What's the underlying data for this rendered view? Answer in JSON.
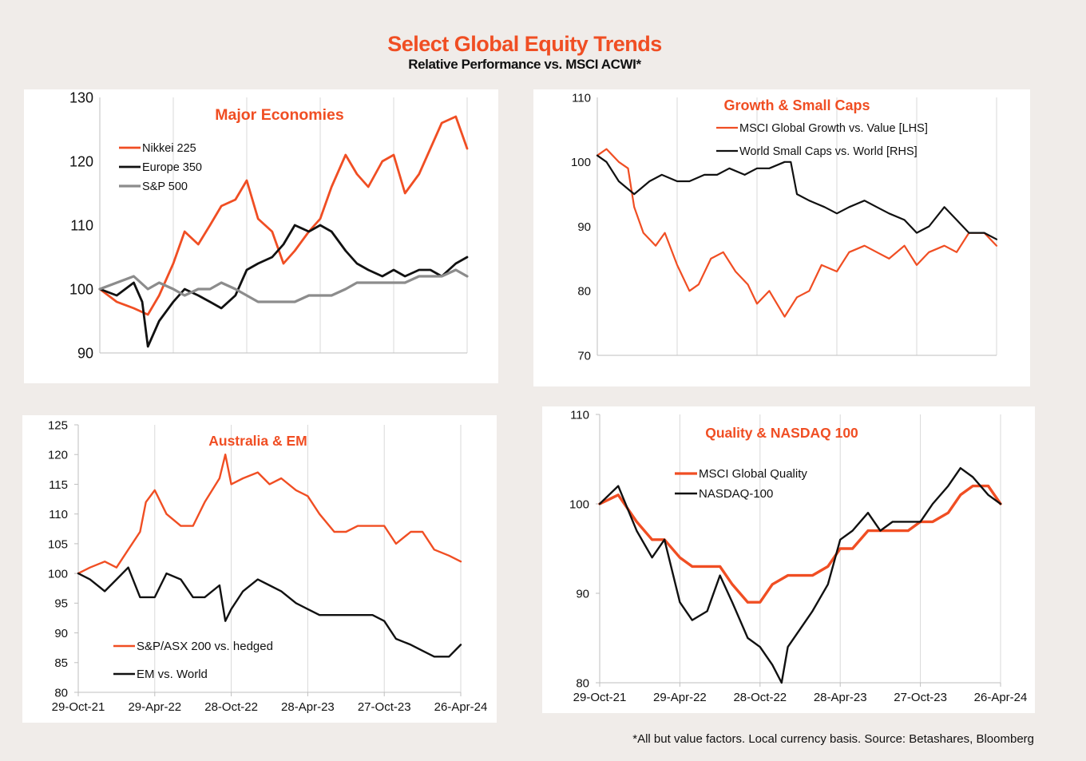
{
  "title": "Select Global Equity Trends",
  "subtitle": "Relative Performance vs. MSCI ACWI*",
  "footnote": "*All but value factors. Local currency basis.  Source: Betashares, Bloomberg",
  "colors": {
    "accent": "#f04e23",
    "dark": "#111111",
    "gray": "#8c8c8c"
  },
  "chart_data": [
    {
      "id": "major-economies",
      "type": "line",
      "title": "Major  Economies",
      "x_range": [
        "2021-10-29",
        "2024-04-26"
      ],
      "ylim": [
        90,
        130
      ],
      "yticks": [
        90,
        100,
        110,
        120,
        130
      ],
      "xticks": [],
      "grid": "vertical",
      "legend_placement": "upper-left",
      "series": [
        {
          "name": "Nikkei 225",
          "color": "#f04e23",
          "width": 2.8,
          "x": [
            "2021-10-29",
            "2021-12-10",
            "2022-01-21",
            "2022-02-25",
            "2022-03-25",
            "2022-04-29",
            "2022-05-27",
            "2022-06-30",
            "2022-07-29",
            "2022-08-26",
            "2022-09-30",
            "2022-10-28",
            "2022-11-25",
            "2022-12-30",
            "2023-01-27",
            "2023-02-24",
            "2023-03-31",
            "2023-04-28",
            "2023-05-26",
            "2023-06-30",
            "2023-07-28",
            "2023-08-25",
            "2023-09-29",
            "2023-10-27",
            "2023-11-24",
            "2023-12-29",
            "2024-01-26",
            "2024-02-23",
            "2024-03-29",
            "2024-04-26"
          ],
          "y": [
            100,
            98,
            97,
            96,
            99,
            104,
            109,
            107,
            110,
            113,
            114,
            117,
            111,
            109,
            104,
            106,
            109,
            111,
            116,
            121,
            118,
            116,
            120,
            121,
            115,
            118,
            122,
            126,
            127,
            122
          ]
        },
        {
          "name": "Europe 350",
          "color": "#111111",
          "width": 2.8,
          "x": [
            "2021-10-29",
            "2021-12-10",
            "2022-01-21",
            "2022-02-11",
            "2022-02-25",
            "2022-03-25",
            "2022-04-29",
            "2022-05-27",
            "2022-06-30",
            "2022-07-29",
            "2022-08-26",
            "2022-09-30",
            "2022-10-28",
            "2022-11-25",
            "2022-12-30",
            "2023-01-27",
            "2023-02-24",
            "2023-03-31",
            "2023-04-28",
            "2023-05-26",
            "2023-06-30",
            "2023-07-28",
            "2023-08-25",
            "2023-09-29",
            "2023-10-27",
            "2023-11-24",
            "2023-12-29",
            "2024-01-26",
            "2024-02-23",
            "2024-03-29",
            "2024-04-26"
          ],
          "y": [
            100,
            99,
            101,
            98,
            91,
            95,
            98,
            100,
            99,
            98,
            97,
            99,
            103,
            104,
            105,
            107,
            110,
            109,
            110,
            109,
            106,
            104,
            103,
            102,
            103,
            102,
            103,
            103,
            102,
            104,
            105
          ]
        },
        {
          "name": "S&P 500",
          "color": "#8c8c8c",
          "width": 3.2,
          "x": [
            "2021-10-29",
            "2021-12-10",
            "2022-01-21",
            "2022-02-25",
            "2022-03-25",
            "2022-04-29",
            "2022-05-27",
            "2022-06-30",
            "2022-07-29",
            "2022-08-26",
            "2022-09-30",
            "2022-10-28",
            "2022-11-25",
            "2022-12-30",
            "2023-01-27",
            "2023-02-24",
            "2023-03-31",
            "2023-04-28",
            "2023-05-26",
            "2023-06-30",
            "2023-07-28",
            "2023-08-25",
            "2023-09-29",
            "2023-10-27",
            "2023-11-24",
            "2023-12-29",
            "2024-01-26",
            "2024-02-23",
            "2024-03-29",
            "2024-04-26"
          ],
          "y": [
            100,
            101,
            102,
            100,
            101,
            100,
            99,
            100,
            100,
            101,
            100,
            99,
            98,
            98,
            98,
            98,
            99,
            99,
            99,
            100,
            101,
            101,
            101,
            101,
            101,
            102,
            102,
            102,
            103,
            102
          ]
        }
      ]
    },
    {
      "id": "growth-small-caps",
      "type": "line",
      "title": "Growth & Small Caps",
      "x_range": [
        "2021-10-29",
        "2024-04-26"
      ],
      "ylim": [
        70,
        110
      ],
      "yticks": [
        70,
        80,
        90,
        100,
        110
      ],
      "xticks": [],
      "grid": "vertical",
      "legend_placement": "top-center",
      "series": [
        {
          "name": "MSCI Global Growth vs. Value [LHS]",
          "color": "#f04e23",
          "width": 2.2,
          "x": [
            "2021-10-29",
            "2021-11-19",
            "2021-12-17",
            "2022-01-07",
            "2022-01-21",
            "2022-02-11",
            "2022-03-11",
            "2022-04-01",
            "2022-04-29",
            "2022-05-27",
            "2022-06-17",
            "2022-07-15",
            "2022-08-12",
            "2022-09-09",
            "2022-10-07",
            "2022-10-28",
            "2022-11-25",
            "2022-12-30",
            "2023-01-27",
            "2023-02-24",
            "2023-03-24",
            "2023-04-28",
            "2023-05-26",
            "2023-06-30",
            "2023-07-28",
            "2023-08-25",
            "2023-09-29",
            "2023-10-27",
            "2023-11-24",
            "2023-12-29",
            "2024-01-26",
            "2024-02-23",
            "2024-03-29",
            "2024-04-26"
          ],
          "y": [
            101,
            102,
            100,
            99,
            93,
            89,
            87,
            89,
            84,
            80,
            81,
            85,
            86,
            83,
            81,
            78,
            80,
            76,
            79,
            80,
            84,
            83,
            86,
            87,
            86,
            85,
            87,
            84,
            86,
            87,
            86,
            89,
            89,
            87
          ]
        },
        {
          "name": "World Small Caps vs. World [RHS]",
          "color": "#111111",
          "width": 2.2,
          "x": [
            "2021-10-29",
            "2021-11-19",
            "2021-12-17",
            "2022-01-21",
            "2022-02-25",
            "2022-03-25",
            "2022-04-29",
            "2022-05-27",
            "2022-06-30",
            "2022-07-29",
            "2022-08-26",
            "2022-09-30",
            "2022-10-28",
            "2022-11-25",
            "2022-12-30",
            "2023-01-13",
            "2023-01-27",
            "2023-02-24",
            "2023-03-31",
            "2023-04-28",
            "2023-05-26",
            "2023-06-30",
            "2023-07-28",
            "2023-08-25",
            "2023-09-29",
            "2023-10-27",
            "2023-11-24",
            "2023-12-29",
            "2024-01-26",
            "2024-02-23",
            "2024-03-29",
            "2024-04-26"
          ],
          "y": [
            101,
            100,
            97,
            95,
            97,
            98,
            97,
            97,
            98,
            98,
            99,
            98,
            99,
            99,
            100,
            100,
            95,
            94,
            93,
            92,
            93,
            94,
            93,
            92,
            91,
            89,
            90,
            93,
            91,
            89,
            89,
            88
          ]
        }
      ]
    },
    {
      "id": "australia-em",
      "type": "line",
      "title": "Australia & EM",
      "x_range": [
        "2021-10-29",
        "2024-04-26"
      ],
      "ylim": [
        80,
        125
      ],
      "yticks": [
        80,
        85,
        90,
        95,
        100,
        105,
        110,
        115,
        120,
        125
      ],
      "xticks": [
        "29-Oct-21",
        "29-Apr-22",
        "28-Oct-22",
        "28-Apr-23",
        "27-Oct-23",
        "26-Apr-24"
      ],
      "grid": "vertical",
      "legend_placement": "bottom-left",
      "series": [
        {
          "name": "S&P/ASX 200 vs. hedged",
          "color": "#f04e23",
          "width": 2.4,
          "x": [
            "2021-10-29",
            "2021-11-26",
            "2021-12-31",
            "2022-01-28",
            "2022-02-25",
            "2022-03-25",
            "2022-04-08",
            "2022-04-29",
            "2022-05-27",
            "2022-06-30",
            "2022-07-29",
            "2022-08-26",
            "2022-09-30",
            "2022-10-14",
            "2022-10-28",
            "2022-11-25",
            "2022-12-30",
            "2023-01-27",
            "2023-02-24",
            "2023-03-31",
            "2023-04-28",
            "2023-05-26",
            "2023-06-30",
            "2023-07-28",
            "2023-08-25",
            "2023-09-29",
            "2023-10-27",
            "2023-11-24",
            "2023-12-29",
            "2024-01-26",
            "2024-02-23",
            "2024-03-29",
            "2024-04-26"
          ],
          "y": [
            100,
            101,
            102,
            101,
            104,
            107,
            112,
            114,
            110,
            108,
            108,
            112,
            116,
            120,
            115,
            116,
            117,
            115,
            116,
            114,
            113,
            110,
            107,
            107,
            108,
            108,
            108,
            105,
            107,
            107,
            104,
            103,
            102
          ]
        },
        {
          "name": "EM vs. World",
          "color": "#111111",
          "width": 2.4,
          "x": [
            "2021-10-29",
            "2021-11-26",
            "2021-12-31",
            "2022-01-28",
            "2022-02-25",
            "2022-03-25",
            "2022-04-29",
            "2022-05-27",
            "2022-06-30",
            "2022-07-29",
            "2022-08-26",
            "2022-09-30",
            "2022-10-14",
            "2022-10-28",
            "2022-11-25",
            "2022-12-30",
            "2023-01-27",
            "2023-02-24",
            "2023-03-31",
            "2023-04-28",
            "2023-05-26",
            "2023-06-30",
            "2023-07-28",
            "2023-08-25",
            "2023-09-29",
            "2023-10-27",
            "2023-11-24",
            "2023-12-29",
            "2024-01-26",
            "2024-02-23",
            "2024-03-29",
            "2024-04-26"
          ],
          "y": [
            100,
            99,
            97,
            99,
            101,
            96,
            96,
            100,
            99,
            96,
            96,
            98,
            92,
            94,
            97,
            99,
            98,
            97,
            95,
            94,
            93,
            93,
            93,
            93,
            93,
            92,
            89,
            88,
            87,
            86,
            86,
            88
          ]
        }
      ]
    },
    {
      "id": "quality-nasdaq",
      "type": "line",
      "title": "Quality & NASDAQ 100",
      "x_range": [
        "2021-10-29",
        "2024-04-26"
      ],
      "ylim": [
        80,
        110
      ],
      "yticks": [
        80,
        90,
        100,
        110
      ],
      "xticks": [
        "29-Oct-21",
        "29-Apr-22",
        "28-Oct-22",
        "28-Apr-23",
        "27-Oct-23",
        "26-Apr-24"
      ],
      "grid": "vertical",
      "legend_placement": "top-center",
      "series": [
        {
          "name": "MSCI Global Quality",
          "color": "#f04e23",
          "width": 3.4,
          "x": [
            "2021-10-29",
            "2021-12-10",
            "2022-01-21",
            "2022-02-25",
            "2022-03-25",
            "2022-04-29",
            "2022-05-27",
            "2022-06-30",
            "2022-07-29",
            "2022-08-26",
            "2022-09-30",
            "2022-10-28",
            "2022-11-25",
            "2022-12-30",
            "2023-01-27",
            "2023-02-24",
            "2023-03-31",
            "2023-04-28",
            "2023-05-26",
            "2023-06-30",
            "2023-07-28",
            "2023-08-25",
            "2023-09-29",
            "2023-10-27",
            "2023-11-24",
            "2023-12-29",
            "2024-01-26",
            "2024-02-23",
            "2024-03-29",
            "2024-04-26"
          ],
          "y": [
            100,
            101,
            98,
            96,
            96,
            94,
            93,
            93,
            93,
            91,
            89,
            89,
            91,
            92,
            92,
            92,
            93,
            95,
            95,
            97,
            97,
            97,
            97,
            98,
            98,
            99,
            101,
            102,
            102,
            100
          ]
        },
        {
          "name": "NASDAQ-100",
          "color": "#111111",
          "width": 2.4,
          "x": [
            "2021-10-29",
            "2021-12-10",
            "2022-01-21",
            "2022-02-25",
            "2022-03-25",
            "2022-04-29",
            "2022-05-27",
            "2022-06-30",
            "2022-07-29",
            "2022-08-26",
            "2022-09-30",
            "2022-10-28",
            "2022-11-25",
            "2022-12-16",
            "2022-12-30",
            "2023-01-27",
            "2023-02-24",
            "2023-03-31",
            "2023-04-28",
            "2023-05-26",
            "2023-06-30",
            "2023-07-28",
            "2023-08-25",
            "2023-09-29",
            "2023-10-27",
            "2023-11-24",
            "2023-12-29",
            "2024-01-26",
            "2024-02-23",
            "2024-03-29",
            "2024-04-26"
          ],
          "y": [
            100,
            102,
            97,
            94,
            96,
            89,
            87,
            88,
            92,
            89,
            85,
            84,
            82,
            80,
            84,
            86,
            88,
            91,
            96,
            97,
            99,
            97,
            98,
            98,
            98,
            100,
            102,
            104,
            103,
            101,
            100
          ]
        }
      ]
    }
  ]
}
